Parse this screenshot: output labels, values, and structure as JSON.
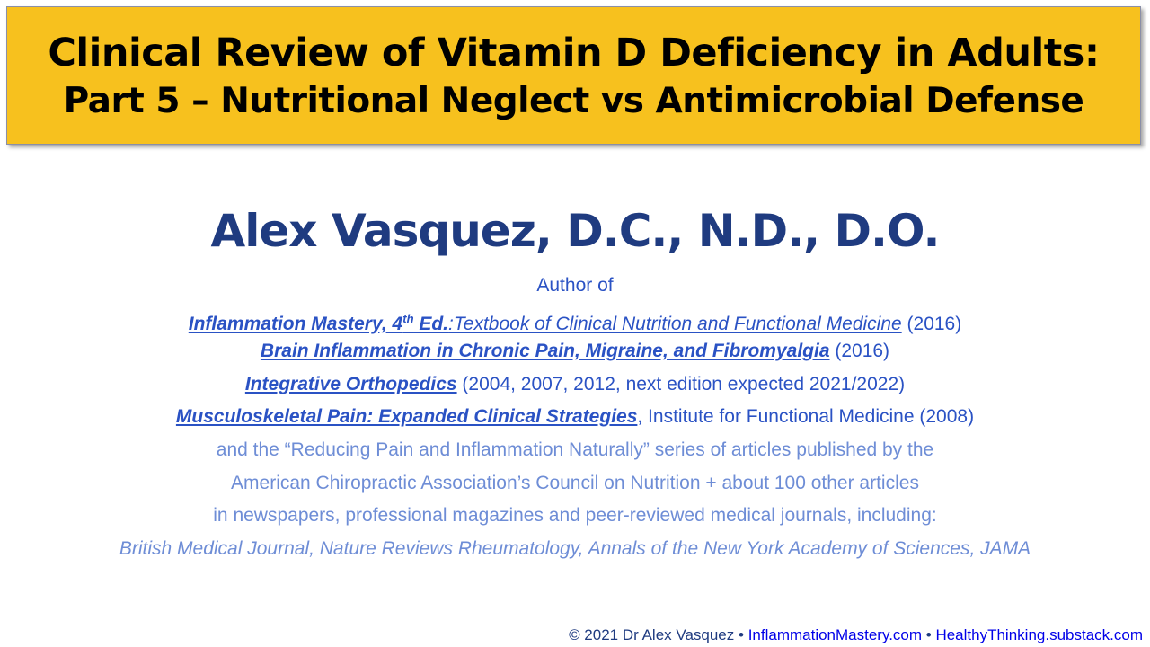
{
  "title": {
    "line1": "Clinical Review of Vitamin D Deficiency in Adults:",
    "line2": "Part 5 – Nutritional Neglect vs Antimicrobial Defense"
  },
  "author": {
    "name": "Alex Vasquez, D.C., N.D., D.O.",
    "author_of": "Author of"
  },
  "books": [
    {
      "title": "Inflammation Mastery, 4",
      "sup": "th",
      "title_end": " Ed.",
      "subtitle": ":Textbook of Clinical Nutrition and Functional Medicine",
      "detail": " (2016)"
    },
    {
      "title": "Brain Inflammation in Chronic Pain, Migraine, and Fibromyalgia",
      "detail": " (2016)"
    },
    {
      "title": "Integrative Orthopedics",
      "detail": " (2004, 2007, 2012, next edition expected 2021/2022)"
    },
    {
      "title": "Musculoskeletal Pain: Expanded Clinical Strategies",
      "detail": ", Institute for Functional Medicine (2008)"
    }
  ],
  "articles": [
    "and the “Reducing Pain and Inflammation Naturally” series of articles published by the",
    "American Chiropractic Association’s Council on Nutrition + about 100 other articles",
    "in newspapers, professional magazines and peer-reviewed medical journals, including:",
    "British Medical Journal, Nature Reviews Rheumatology, Annals of the New York Academy of Sciences, JAMA"
  ],
  "footer": {
    "copyright": "© 2021 Dr Alex Vasquez •",
    "link1": "InflammationMastery.com",
    "sep": " • ",
    "link2": "HealthyThinking.substack.com"
  },
  "colors": {
    "title_bg": "#F7C11E",
    "name": "#1F3B80",
    "books": "#2A52C4",
    "articles": "#6E8DD6",
    "links": "#0000E8"
  }
}
